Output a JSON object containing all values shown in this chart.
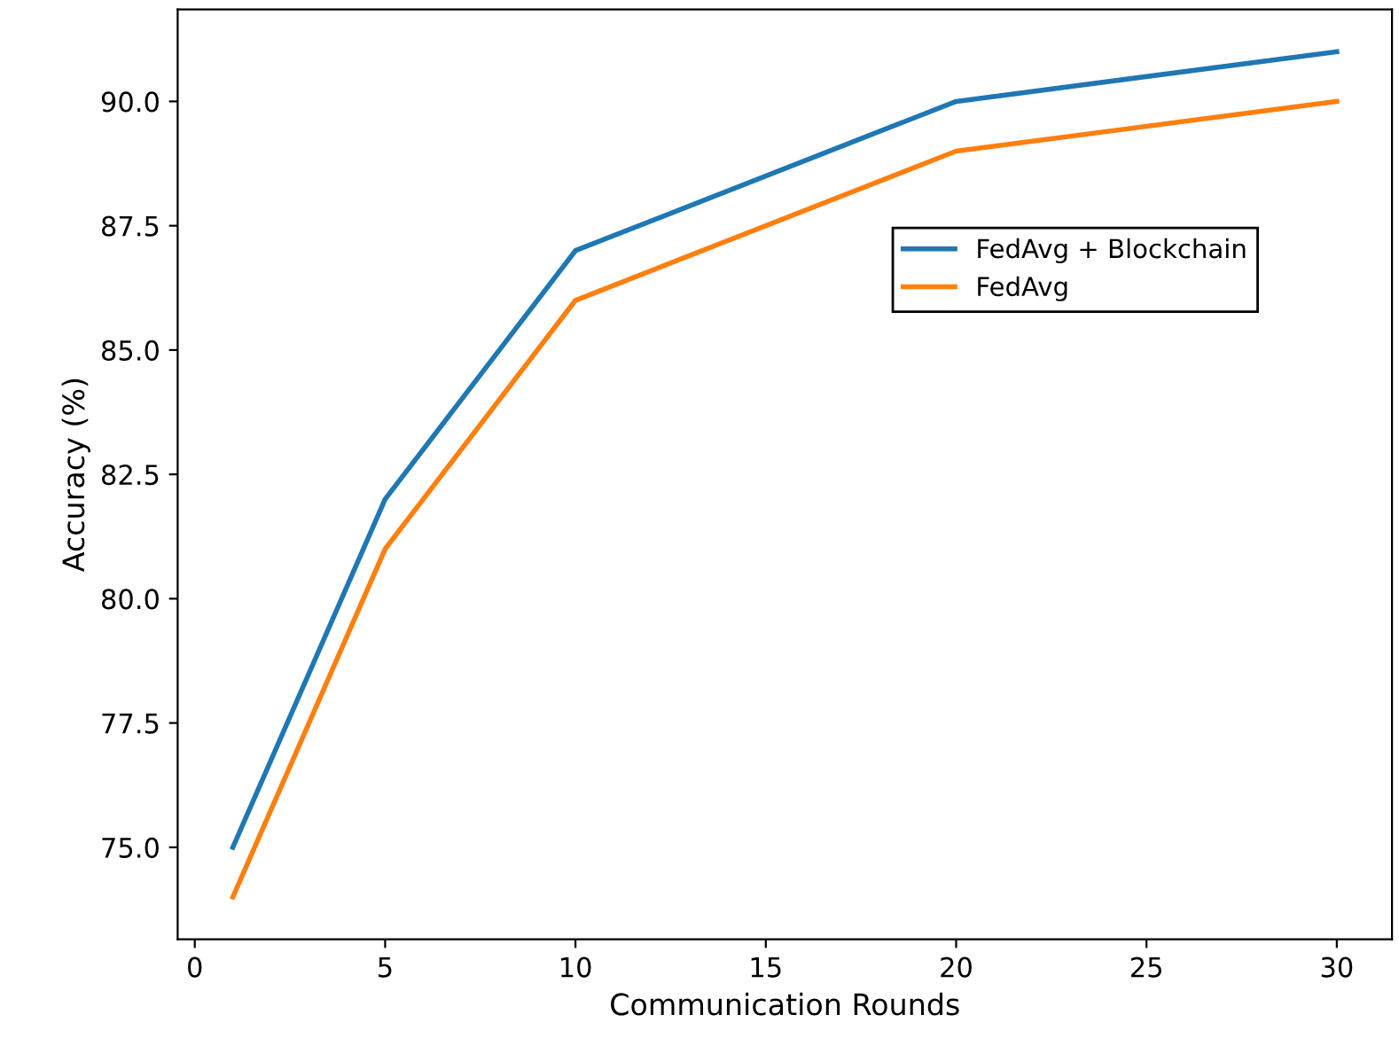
{
  "chart_data": {
    "type": "line",
    "xlabel": "Communication Rounds",
    "ylabel": "Accuracy (%)",
    "x": [
      1,
      5,
      10,
      20,
      30
    ],
    "series": [
      {
        "name": "FedAvg + Blockchain",
        "color": "#1f77b4",
        "values": [
          75,
          82,
          87,
          90,
          91
        ]
      },
      {
        "name": "FedAvg",
        "color": "#ff7f0e",
        "values": [
          74,
          81,
          86,
          89,
          90
        ]
      }
    ],
    "xlim": [
      -0.45,
      31.45
    ],
    "ylim": [
      73.15,
      91.85
    ],
    "xticks": [
      0,
      5,
      10,
      15,
      20,
      25,
      30
    ],
    "yticks": [
      {
        "value": 75,
        "label": "75.0"
      },
      {
        "value": 77.5,
        "label": "77.5"
      },
      {
        "value": 80,
        "label": "80.0"
      },
      {
        "value": 82.5,
        "label": "82.5"
      },
      {
        "value": 85,
        "label": "85.0"
      },
      {
        "value": 87.5,
        "label": "87.5"
      },
      {
        "value": 90,
        "label": "90.0"
      }
    ],
    "grid": false,
    "legend": "center right",
    "marker": "none",
    "line_style": "solid"
  }
}
